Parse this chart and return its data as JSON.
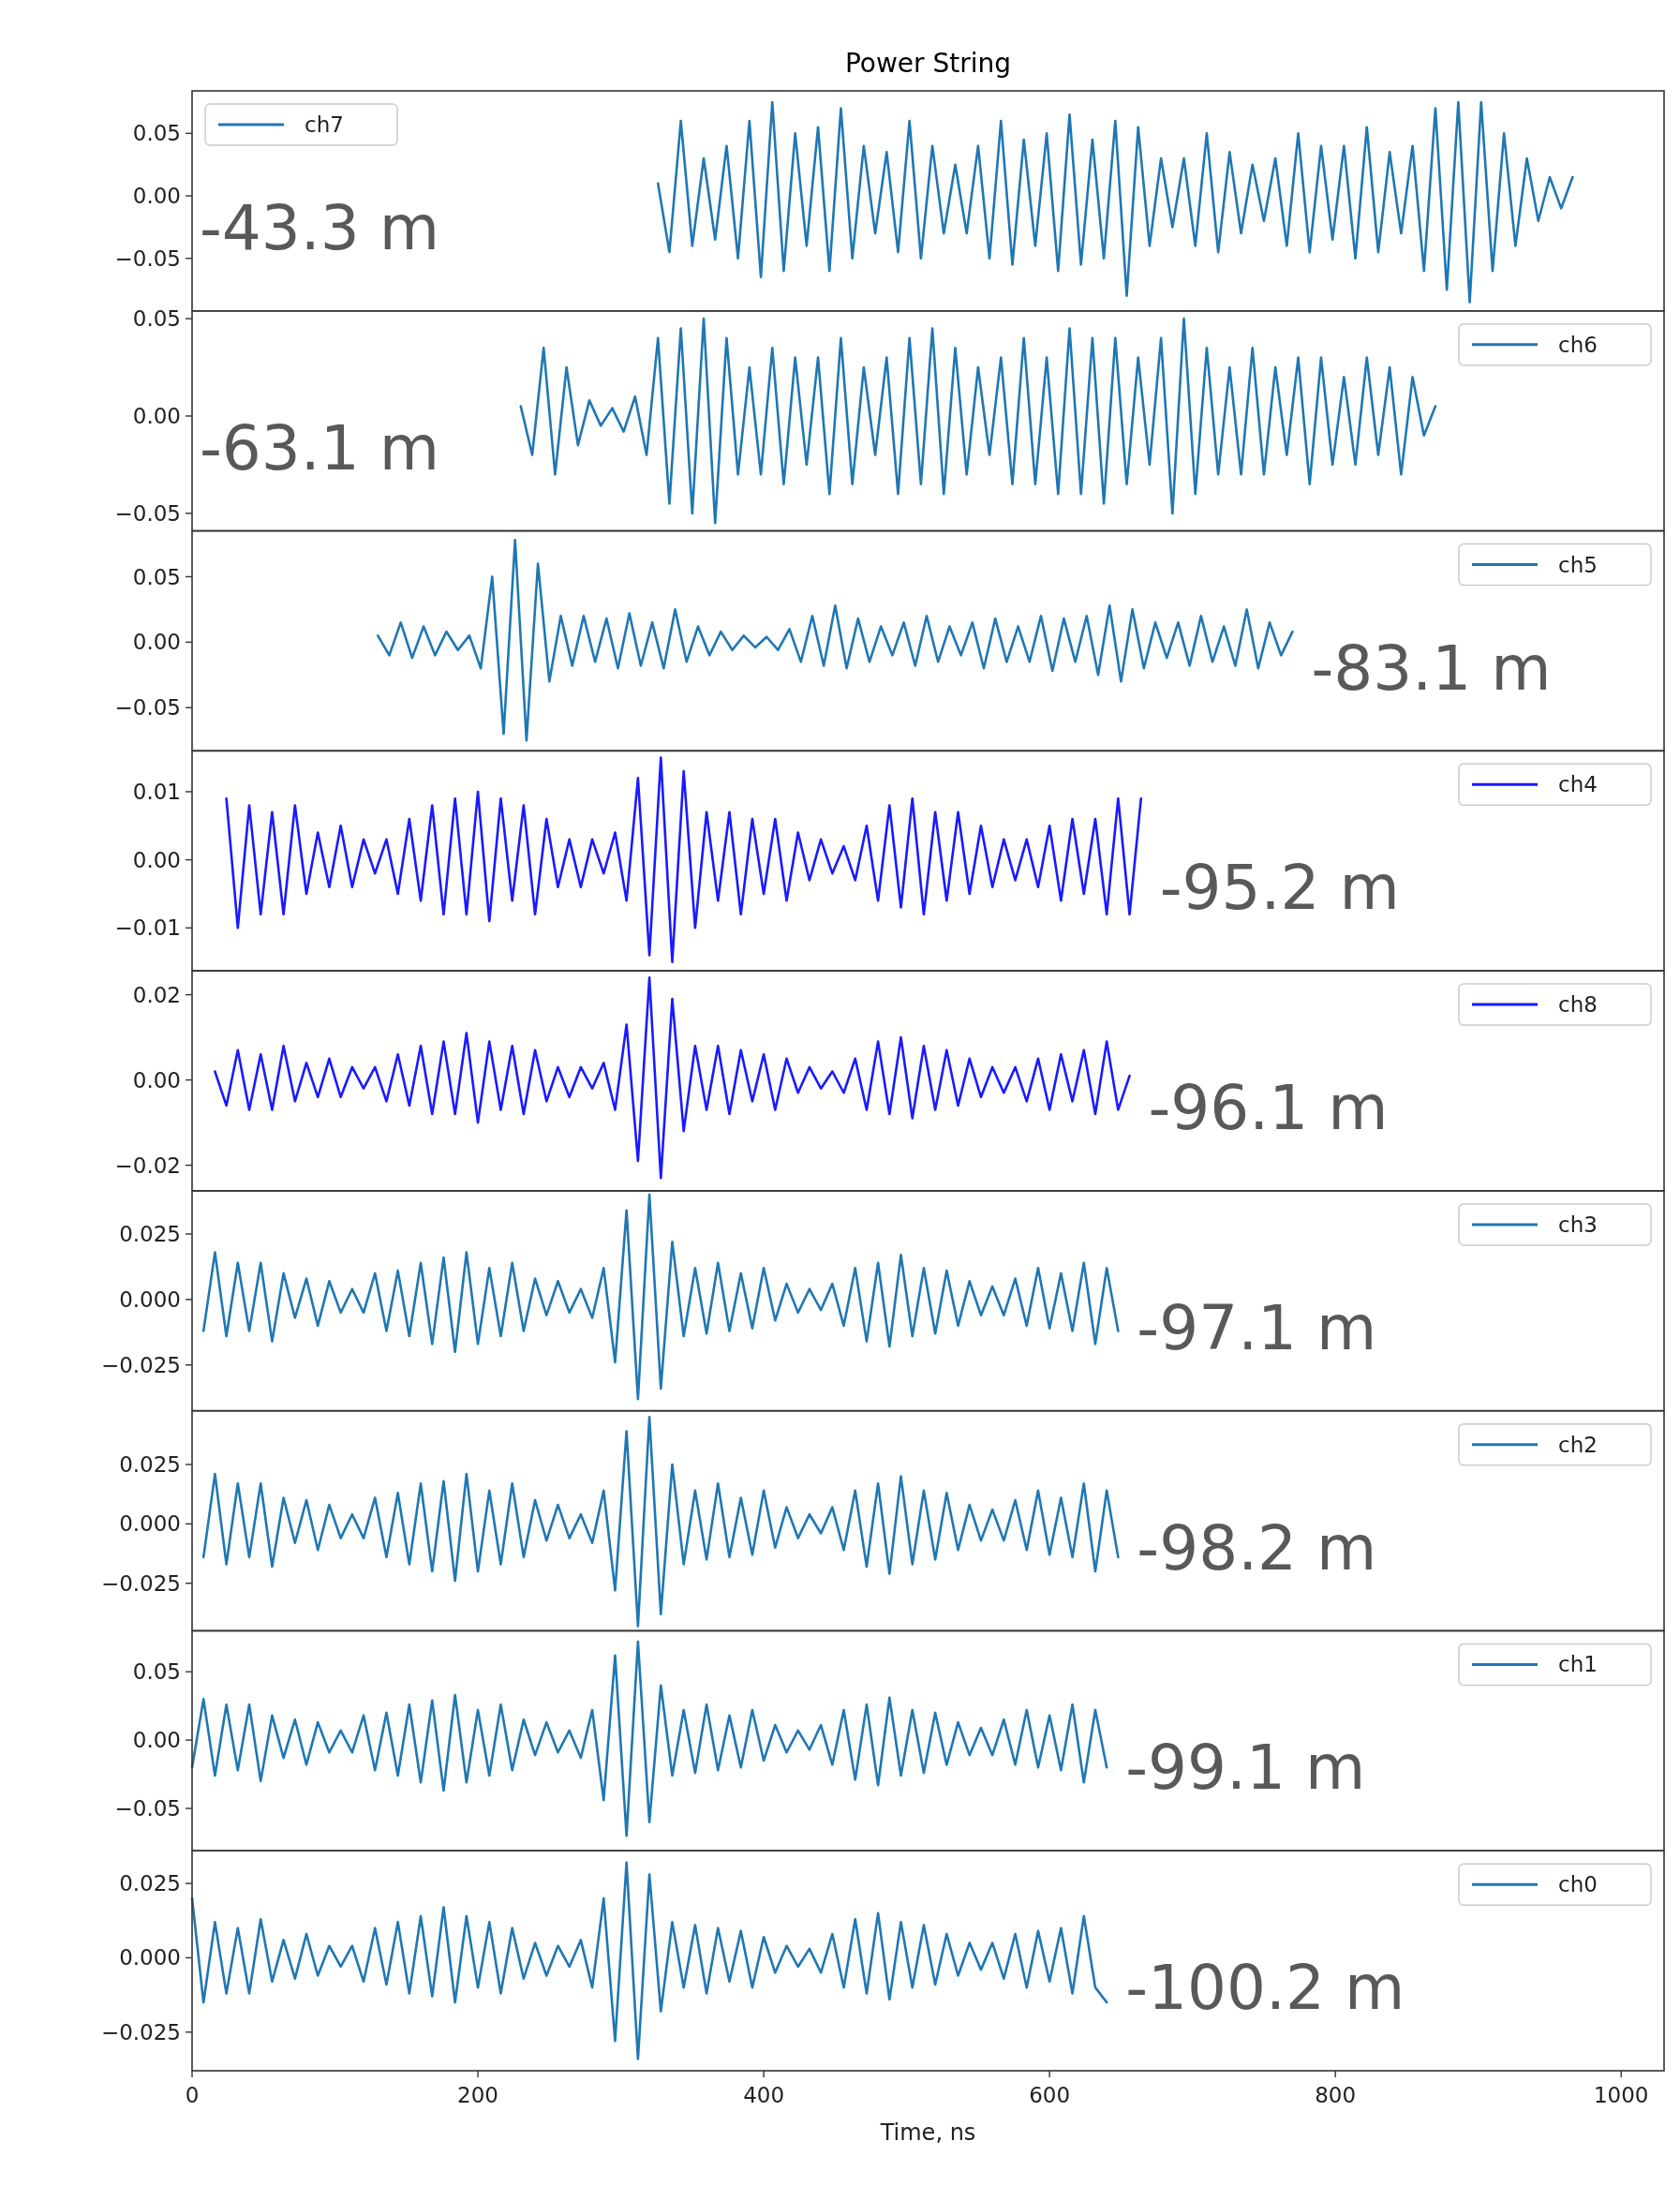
{
  "chart_data": [
    {
      "type": "line",
      "title": "Power String",
      "legend": "top left",
      "tick_labels": "y",
      "annotations": [
        "-43.3 m"
      ],
      "xlim": [
        0,
        1030
      ],
      "ylim": [
        -0.092,
        0.084
      ],
      "yticks": [
        0.05,
        {
          "value": 0,
          "label": "0.00"
        },
        {
          "value": -0.05,
          "label": "−0.05"
        }
      ],
      "x": [
        326,
        334,
        342,
        350,
        358,
        366,
        374,
        382,
        390,
        398,
        406,
        414,
        422,
        430,
        438,
        446,
        454,
        462,
        470,
        478,
        486,
        494,
        502,
        510,
        518,
        526,
        534,
        542,
        550,
        558,
        566,
        574,
        582,
        590,
        598,
        606,
        614,
        622,
        630,
        638,
        646,
        654,
        662,
        670,
        678,
        686,
        694,
        702,
        710,
        718,
        726,
        734,
        742,
        750,
        758,
        766,
        774,
        782,
        790,
        798,
        806,
        814,
        822,
        830,
        838,
        846,
        854,
        862,
        870,
        878,
        886,
        894,
        902,
        910,
        918,
        926,
        934,
        942,
        950,
        958,
        966
      ],
      "series": [
        {
          "name": "ch7",
          "color": "#1f77b4",
          "values": [
            0.01,
            -0.045,
            0.06,
            -0.04,
            0.03,
            -0.035,
            0.04,
            -0.05,
            0.06,
            -0.065,
            0.075,
            -0.06,
            0.05,
            -0.04,
            0.055,
            -0.06,
            0.07,
            -0.05,
            0.04,
            -0.03,
            0.035,
            -0.045,
            0.06,
            -0.05,
            0.04,
            -0.03,
            0.025,
            -0.03,
            0.04,
            -0.05,
            0.06,
            -0.055,
            0.045,
            -0.04,
            0.05,
            -0.06,
            0.065,
            -0.055,
            0.045,
            -0.05,
            0.06,
            -0.08,
            0.055,
            -0.04,
            0.03,
            -0.025,
            0.03,
            -0.04,
            0.05,
            -0.045,
            0.035,
            -0.03,
            0.025,
            -0.02,
            0.03,
            -0.04,
            0.05,
            -0.045,
            0.04,
            -0.035,
            0.04,
            -0.05,
            0.055,
            -0.045,
            0.035,
            -0.03,
            0.04,
            -0.06,
            0.07,
            -0.075,
            0.075,
            -0.085,
            0.075,
            -0.06,
            0.05,
            -0.04,
            0.03,
            -0.02,
            0.015,
            -0.01,
            0.015
          ]
        }
      ]
    },
    {
      "type": "line",
      "legend": "top right",
      "tick_labels": "y",
      "annotations": [
        "-63.1 m"
      ],
      "xlim": [
        0,
        1030
      ],
      "ylim": [
        -0.059,
        0.054
      ],
      "yticks": [
        0.05,
        {
          "value": 0,
          "label": "0.00"
        },
        {
          "value": -0.05,
          "label": "−0.05"
        }
      ],
      "x": [
        230,
        238,
        246,
        254,
        262,
        270,
        278,
        286,
        294,
        302,
        310,
        318,
        326,
        334,
        342,
        350,
        358,
        366,
        374,
        382,
        390,
        398,
        406,
        414,
        422,
        430,
        438,
        446,
        454,
        462,
        470,
        478,
        486,
        494,
        502,
        510,
        518,
        526,
        534,
        542,
        550,
        558,
        566,
        574,
        582,
        590,
        598,
        606,
        614,
        622,
        630,
        638,
        646,
        654,
        662,
        670,
        678,
        686,
        694,
        702,
        710,
        718,
        726,
        734,
        742,
        750,
        758,
        766,
        774,
        782,
        790,
        798,
        806,
        814,
        822,
        830,
        838,
        846,
        854,
        862,
        870
      ],
      "series": [
        {
          "name": "ch6",
          "color": "#1f77b4",
          "values": [
            0.005,
            -0.02,
            0.035,
            -0.03,
            0.025,
            -0.015,
            0.008,
            -0.005,
            0.004,
            -0.008,
            0.01,
            -0.02,
            0.04,
            -0.045,
            0.045,
            -0.05,
            0.05,
            -0.055,
            0.04,
            -0.03,
            0.025,
            -0.03,
            0.035,
            -0.035,
            0.03,
            -0.025,
            0.03,
            -0.04,
            0.04,
            -0.035,
            0.025,
            -0.02,
            0.03,
            -0.04,
            0.04,
            -0.035,
            0.045,
            -0.04,
            0.035,
            -0.03,
            0.025,
            -0.02,
            0.03,
            -0.035,
            0.04,
            -0.035,
            0.03,
            -0.04,
            0.045,
            -0.04,
            0.04,
            -0.045,
            0.04,
            -0.035,
            0.03,
            -0.025,
            0.04,
            -0.05,
            0.05,
            -0.04,
            0.035,
            -0.03,
            0.025,
            -0.03,
            0.035,
            -0.03,
            0.025,
            -0.02,
            0.03,
            -0.035,
            0.03,
            -0.025,
            0.02,
            -0.025,
            0.03,
            -0.02,
            0.025,
            -0.03,
            0.02,
            -0.01,
            0.005
          ]
        }
      ]
    },
    {
      "type": "line",
      "legend": "top right",
      "tick_labels": "y",
      "annotations": [
        "-83.1 m"
      ],
      "xlim": [
        0,
        1030
      ],
      "ylim": [
        -0.083,
        0.085
      ],
      "yticks": [
        0.05,
        {
          "value": 0,
          "label": "0.00"
        },
        {
          "value": -0.05,
          "label": "−0.05"
        }
      ],
      "x": [
        130,
        138,
        146,
        154,
        162,
        170,
        178,
        186,
        194,
        202,
        210,
        218,
        226,
        234,
        242,
        250,
        258,
        266,
        274,
        282,
        290,
        298,
        306,
        314,
        322,
        330,
        338,
        346,
        354,
        362,
        370,
        378,
        386,
        394,
        402,
        410,
        418,
        426,
        434,
        442,
        450,
        458,
        466,
        474,
        482,
        490,
        498,
        506,
        514,
        522,
        530,
        538,
        546,
        554,
        562,
        570,
        578,
        586,
        594,
        602,
        610,
        618,
        626,
        634,
        642,
        650,
        658,
        666,
        674,
        682,
        690,
        698,
        706,
        714,
        722,
        730,
        738,
        746,
        754,
        762,
        770
      ],
      "series": [
        {
          "name": "ch5",
          "color": "#1f77b4",
          "values": [
            0.005,
            -0.01,
            0.015,
            -0.012,
            0.012,
            -0.01,
            0.008,
            -0.006,
            0.005,
            -0.02,
            0.05,
            -0.07,
            0.078,
            -0.075,
            0.06,
            -0.03,
            0.02,
            -0.018,
            0.02,
            -0.015,
            0.018,
            -0.02,
            0.022,
            -0.018,
            0.015,
            -0.02,
            0.025,
            -0.015,
            0.012,
            -0.01,
            0.008,
            -0.006,
            0.005,
            -0.004,
            0.004,
            -0.006,
            0.01,
            -0.015,
            0.02,
            -0.018,
            0.028,
            -0.02,
            0.018,
            -0.015,
            0.012,
            -0.01,
            0.015,
            -0.018,
            0.02,
            -0.015,
            0.012,
            -0.01,
            0.015,
            -0.02,
            0.018,
            -0.015,
            0.012,
            -0.015,
            0.02,
            -0.022,
            0.018,
            -0.015,
            0.02,
            -0.025,
            0.028,
            -0.03,
            0.025,
            -0.02,
            0.015,
            -0.012,
            0.015,
            -0.018,
            0.02,
            -0.015,
            0.012,
            -0.018,
            0.025,
            -0.02,
            0.015,
            -0.01,
            0.008
          ]
        }
      ]
    },
    {
      "type": "line",
      "legend": "top right",
      "tick_labels": "y",
      "annotations": [
        "-95.2 m"
      ],
      "xlim": [
        0,
        1030
      ],
      "ylim": [
        -0.0163,
        0.016
      ],
      "yticks": [
        0.01,
        {
          "value": 0,
          "label": "0.00"
        },
        {
          "value": -0.01,
          "label": "−0.01"
        }
      ],
      "x": [
        24,
        32,
        40,
        48,
        56,
        64,
        72,
        80,
        88,
        96,
        104,
        112,
        120,
        128,
        136,
        144,
        152,
        160,
        168,
        176,
        184,
        192,
        200,
        208,
        216,
        224,
        232,
        240,
        248,
        256,
        264,
        272,
        280,
        288,
        296,
        304,
        312,
        320,
        328,
        336,
        344,
        352,
        360,
        368,
        376,
        384,
        392,
        400,
        408,
        416,
        424,
        432,
        440,
        448,
        456,
        464,
        472,
        480,
        488,
        496,
        504,
        512,
        520,
        528,
        536,
        544,
        552,
        560,
        568,
        576,
        584,
        592,
        600,
        608,
        616,
        624,
        632,
        640,
        648,
        656,
        664
      ],
      "series": [
        {
          "name": "ch4",
          "color": "#1a1aff",
          "values": [
            0.009,
            -0.01,
            0.008,
            -0.008,
            0.007,
            -0.008,
            0.008,
            -0.005,
            0.004,
            -0.004,
            0.005,
            -0.004,
            0.003,
            -0.002,
            0.003,
            -0.005,
            0.006,
            -0.006,
            0.008,
            -0.008,
            0.009,
            -0.008,
            0.01,
            -0.009,
            0.009,
            -0.006,
            0.008,
            -0.008,
            0.006,
            -0.004,
            0.003,
            -0.004,
            0.003,
            -0.002,
            0.004,
            -0.006,
            0.012,
            -0.014,
            0.015,
            -0.015,
            0.013,
            -0.01,
            0.007,
            -0.006,
            0.007,
            -0.008,
            0.006,
            -0.005,
            0.006,
            -0.006,
            0.004,
            -0.003,
            0.003,
            -0.002,
            0.002,
            -0.003,
            0.005,
            -0.006,
            0.008,
            -0.007,
            0.009,
            -0.008,
            0.007,
            -0.006,
            0.007,
            -0.005,
            0.005,
            -0.004,
            0.003,
            -0.003,
            0.003,
            -0.004,
            0.005,
            -0.006,
            0.006,
            -0.005,
            0.006,
            -0.008,
            0.009,
            -0.008,
            0.009
          ]
        }
      ]
    },
    {
      "type": "line",
      "legend": "top right",
      "tick_labels": "y",
      "annotations": [
        "-96.1 m"
      ],
      "xlim": [
        0,
        1030
      ],
      "ylim": [
        -0.026,
        0.0256
      ],
      "yticks": [
        0.02,
        {
          "value": 0,
          "label": "0.00"
        },
        {
          "value": -0.02,
          "label": "−0.02"
        }
      ],
      "x": [
        16,
        24,
        32,
        40,
        48,
        56,
        64,
        72,
        80,
        88,
        96,
        104,
        112,
        120,
        128,
        136,
        144,
        152,
        160,
        168,
        176,
        184,
        192,
        200,
        208,
        216,
        224,
        232,
        240,
        248,
        256,
        264,
        272,
        280,
        288,
        296,
        304,
        312,
        320,
        328,
        336,
        344,
        352,
        360,
        368,
        376,
        384,
        392,
        400,
        408,
        416,
        424,
        432,
        440,
        448,
        456,
        464,
        472,
        480,
        488,
        496,
        504,
        512,
        520,
        528,
        536,
        544,
        552,
        560,
        568,
        576,
        584,
        592,
        600,
        608,
        616,
        624,
        632,
        640,
        648,
        656
      ],
      "series": [
        {
          "name": "ch8",
          "color": "#1a1aff",
          "values": [
            0.002,
            -0.006,
            0.007,
            -0.007,
            0.006,
            -0.007,
            0.008,
            -0.005,
            0.004,
            -0.004,
            0.005,
            -0.004,
            0.003,
            -0.002,
            0.003,
            -0.005,
            0.006,
            -0.006,
            0.008,
            -0.008,
            0.009,
            -0.008,
            0.011,
            -0.01,
            0.009,
            -0.007,
            0.008,
            -0.008,
            0.007,
            -0.005,
            0.003,
            -0.004,
            0.003,
            -0.002,
            0.004,
            -0.007,
            0.013,
            -0.019,
            0.024,
            -0.023,
            0.019,
            -0.012,
            0.008,
            -0.007,
            0.008,
            -0.008,
            0.007,
            -0.005,
            0.006,
            -0.007,
            0.005,
            -0.003,
            0.003,
            -0.002,
            0.002,
            -0.003,
            0.005,
            -0.007,
            0.009,
            -0.008,
            0.01,
            -0.009,
            0.008,
            -0.007,
            0.007,
            -0.006,
            0.005,
            -0.004,
            0.003,
            -0.003,
            0.003,
            -0.005,
            0.005,
            -0.007,
            0.006,
            -0.005,
            0.007,
            -0.008,
            0.009,
            -0.007,
            0.001
          ]
        }
      ]
    },
    {
      "type": "line",
      "legend": "top right",
      "tick_labels": "y",
      "annotations": [
        "-97.1 m"
      ],
      "xlim": [
        0,
        1030
      ],
      "ylim": [
        -0.0425,
        0.0415
      ],
      "yticks": [
        {
          "value": 0.025,
          "label": "0.025"
        },
        {
          "value": 0,
          "label": "0.000"
        },
        {
          "value": -0.025,
          "label": "−0.025"
        }
      ],
      "x": [
        8,
        16,
        24,
        32,
        40,
        48,
        56,
        64,
        72,
        80,
        88,
        96,
        104,
        112,
        120,
        128,
        136,
        144,
        152,
        160,
        168,
        176,
        184,
        192,
        200,
        208,
        216,
        224,
        232,
        240,
        248,
        256,
        264,
        272,
        280,
        288,
        296,
        304,
        312,
        320,
        328,
        336,
        344,
        352,
        360,
        368,
        376,
        384,
        392,
        400,
        408,
        416,
        424,
        432,
        440,
        448,
        456,
        464,
        472,
        480,
        488,
        496,
        504,
        512,
        520,
        528,
        536,
        544,
        552,
        560,
        568,
        576,
        584,
        592,
        600,
        608,
        616,
        624,
        632,
        640,
        648
      ],
      "series": [
        {
          "name": "ch3",
          "color": "#1f77b4",
          "values": [
            -0.012,
            0.018,
            -0.014,
            0.014,
            -0.012,
            0.014,
            -0.016,
            0.01,
            -0.007,
            0.008,
            -0.01,
            0.007,
            -0.005,
            0.004,
            -0.005,
            0.01,
            -0.012,
            0.011,
            -0.014,
            0.014,
            -0.017,
            0.016,
            -0.02,
            0.018,
            -0.017,
            0.012,
            -0.014,
            0.014,
            -0.012,
            0.008,
            -0.006,
            0.007,
            -0.005,
            0.004,
            -0.007,
            0.012,
            -0.024,
            0.034,
            -0.038,
            0.04,
            -0.034,
            0.022,
            -0.014,
            0.012,
            -0.013,
            0.014,
            -0.012,
            0.01,
            -0.011,
            0.012,
            -0.008,
            0.006,
            -0.005,
            0.004,
            -0.004,
            0.006,
            -0.01,
            0.012,
            -0.016,
            0.014,
            -0.018,
            0.017,
            -0.014,
            0.012,
            -0.013,
            0.011,
            -0.01,
            0.007,
            -0.006,
            0.005,
            -0.006,
            0.008,
            -0.01,
            0.012,
            -0.011,
            0.01,
            -0.012,
            0.014,
            -0.017,
            0.012,
            -0.012
          ]
        }
      ]
    },
    {
      "type": "line",
      "legend": "top right",
      "tick_labels": "y",
      "annotations": [
        "-98.2 m"
      ],
      "xlim": [
        0,
        1030
      ],
      "ylim": [
        -0.045,
        0.0476
      ],
      "yticks": [
        {
          "value": 0.025,
          "label": "0.025"
        },
        {
          "value": 0,
          "label": "0.000"
        },
        {
          "value": -0.025,
          "label": "−0.025"
        }
      ],
      "x": [
        8,
        16,
        24,
        32,
        40,
        48,
        56,
        64,
        72,
        80,
        88,
        96,
        104,
        112,
        120,
        128,
        136,
        144,
        152,
        160,
        168,
        176,
        184,
        192,
        200,
        208,
        216,
        224,
        232,
        240,
        248,
        256,
        264,
        272,
        280,
        288,
        296,
        304,
        312,
        320,
        328,
        336,
        344,
        352,
        360,
        368,
        376,
        384,
        392,
        400,
        408,
        416,
        424,
        432,
        440,
        448,
        456,
        464,
        472,
        480,
        488,
        496,
        504,
        512,
        520,
        528,
        536,
        544,
        552,
        560,
        568,
        576,
        584,
        592,
        600,
        608,
        616,
        624,
        632,
        640,
        648
      ],
      "series": [
        {
          "name": "ch2",
          "color": "#1f77b4",
          "values": [
            -0.014,
            0.021,
            -0.017,
            0.017,
            -0.014,
            0.017,
            -0.018,
            0.011,
            -0.008,
            0.01,
            -0.011,
            0.008,
            -0.006,
            0.004,
            -0.006,
            0.011,
            -0.014,
            0.013,
            -0.017,
            0.017,
            -0.02,
            0.018,
            -0.024,
            0.021,
            -0.02,
            0.014,
            -0.017,
            0.017,
            -0.014,
            0.01,
            -0.007,
            0.008,
            -0.006,
            0.004,
            -0.008,
            0.014,
            -0.028,
            0.039,
            -0.043,
            0.045,
            -0.038,
            0.025,
            -0.017,
            0.014,
            -0.015,
            0.017,
            -0.014,
            0.011,
            -0.013,
            0.014,
            -0.01,
            0.007,
            -0.006,
            0.004,
            -0.004,
            0.007,
            -0.011,
            0.014,
            -0.018,
            0.017,
            -0.021,
            0.02,
            -0.017,
            0.014,
            -0.015,
            0.013,
            -0.011,
            0.008,
            -0.007,
            0.006,
            -0.007,
            0.01,
            -0.011,
            0.014,
            -0.013,
            0.011,
            -0.014,
            0.017,
            -0.02,
            0.014,
            -0.014
          ]
        }
      ]
    },
    {
      "type": "line",
      "legend": "top right",
      "tick_labels": "y",
      "annotations": [
        "-99.1 m"
      ],
      "xlim": [
        0,
        1030
      ],
      "ylim": [
        -0.081,
        0.08
      ],
      "yticks": [
        0.05,
        {
          "value": 0,
          "label": "0.00"
        },
        {
          "value": -0.05,
          "label": "−0.05"
        }
      ],
      "x": [
        0,
        8,
        16,
        24,
        32,
        40,
        48,
        56,
        64,
        72,
        80,
        88,
        96,
        104,
        112,
        120,
        128,
        136,
        144,
        152,
        160,
        168,
        176,
        184,
        192,
        200,
        208,
        216,
        224,
        232,
        240,
        248,
        256,
        264,
        272,
        280,
        288,
        296,
        304,
        312,
        320,
        328,
        336,
        344,
        352,
        360,
        368,
        376,
        384,
        392,
        400,
        408,
        416,
        424,
        432,
        440,
        448,
        456,
        464,
        472,
        480,
        488,
        496,
        504,
        512,
        520,
        528,
        536,
        544,
        552,
        560,
        568,
        576,
        584,
        592,
        600,
        608,
        616,
        624,
        632,
        640
      ],
      "series": [
        {
          "name": "ch1",
          "color": "#1f77b4",
          "values": [
            -0.02,
            0.03,
            -0.026,
            0.026,
            -0.022,
            0.026,
            -0.03,
            0.018,
            -0.013,
            0.015,
            -0.018,
            0.013,
            -0.009,
            0.007,
            -0.009,
            0.018,
            -0.022,
            0.02,
            -0.026,
            0.026,
            -0.031,
            0.029,
            -0.037,
            0.033,
            -0.031,
            0.022,
            -0.026,
            0.026,
            -0.022,
            0.015,
            -0.011,
            0.013,
            -0.009,
            0.007,
            -0.013,
            0.022,
            -0.044,
            0.062,
            -0.07,
            0.072,
            -0.06,
            0.04,
            -0.026,
            0.022,
            -0.024,
            0.026,
            -0.022,
            0.018,
            -0.02,
            0.022,
            -0.015,
            0.011,
            -0.009,
            0.007,
            -0.007,
            0.011,
            -0.018,
            0.022,
            -0.029,
            0.026,
            -0.033,
            0.031,
            -0.026,
            0.022,
            -0.024,
            0.02,
            -0.018,
            0.013,
            -0.011,
            0.009,
            -0.011,
            0.015,
            -0.018,
            0.022,
            -0.02,
            0.018,
            -0.022,
            0.026,
            -0.031,
            0.022,
            -0.02
          ]
        }
      ]
    },
    {
      "type": "line",
      "legend": "top right",
      "xlabel": "Time, ns",
      "annotations": [
        "-100.2 m"
      ],
      "xlim": [
        0,
        1030
      ],
      "xticks": [
        0,
        200,
        400,
        600,
        800,
        1000
      ],
      "ylim": [
        -0.038,
        0.036
      ],
      "yticks": [
        {
          "value": 0.025,
          "label": "0.025"
        },
        {
          "value": 0,
          "label": "0.000"
        },
        {
          "value": -0.025,
          "label": "−0.025"
        }
      ],
      "x": [
        0,
        8,
        16,
        24,
        32,
        40,
        48,
        56,
        64,
        72,
        80,
        88,
        96,
        104,
        112,
        120,
        128,
        136,
        144,
        152,
        160,
        168,
        176,
        184,
        192,
        200,
        208,
        216,
        224,
        232,
        240,
        248,
        256,
        264,
        272,
        280,
        288,
        296,
        304,
        312,
        320,
        328,
        336,
        344,
        352,
        360,
        368,
        376,
        384,
        392,
        400,
        408,
        416,
        424,
        432,
        440,
        448,
        456,
        464,
        472,
        480,
        488,
        496,
        504,
        512,
        520,
        528,
        536,
        544,
        552,
        560,
        568,
        576,
        584,
        592,
        600,
        608,
        616,
        624,
        632,
        640
      ],
      "series": [
        {
          "name": "ch0",
          "color": "#1f77b4",
          "values": [
            0.02,
            -0.015,
            0.012,
            -0.012,
            0.01,
            -0.012,
            0.013,
            -0.008,
            0.006,
            -0.007,
            0.008,
            -0.006,
            0.004,
            -0.003,
            0.004,
            -0.008,
            0.01,
            -0.009,
            0.012,
            -0.012,
            0.014,
            -0.013,
            0.017,
            -0.015,
            0.014,
            -0.01,
            0.012,
            -0.012,
            0.01,
            -0.007,
            0.005,
            -0.006,
            0.004,
            -0.003,
            0.006,
            -0.01,
            0.02,
            -0.028,
            0.032,
            -0.034,
            0.028,
            -0.018,
            0.012,
            -0.01,
            0.011,
            -0.012,
            0.01,
            -0.008,
            0.009,
            -0.01,
            0.007,
            -0.005,
            0.004,
            -0.003,
            0.003,
            -0.005,
            0.008,
            -0.01,
            0.013,
            -0.012,
            0.015,
            -0.014,
            0.012,
            -0.01,
            0.011,
            -0.009,
            0.008,
            -0.006,
            0.005,
            -0.004,
            0.005,
            -0.007,
            0.008,
            -0.01,
            0.009,
            -0.008,
            0.01,
            -0.012,
            0.014,
            -0.01,
            -0.015
          ]
        }
      ]
    }
  ]
}
